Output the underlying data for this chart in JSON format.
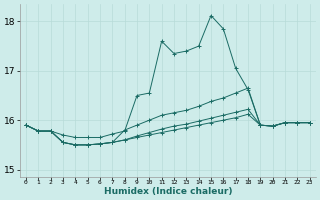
{
  "xlabel": "Humidex (Indice chaleur)",
  "background_color": "#ceecea",
  "grid_color": "#b8dbd8",
  "line_color": "#1a6b64",
  "x_labels": [
    "0",
    "1",
    "2",
    "3",
    "4",
    "5",
    "6",
    "7",
    "8",
    "9",
    "10",
    "11",
    "12",
    "13",
    "14",
    "15",
    "16",
    "17",
    "18",
    "19",
    "20",
    "21",
    "22",
    "23"
  ],
  "xlim": [
    -0.5,
    23.5
  ],
  "ylim": [
    14.85,
    18.35
  ],
  "yticks": [
    15,
    16,
    17,
    18
  ],
  "series": [
    [
      15.9,
      15.78,
      15.78,
      15.7,
      15.65,
      15.65,
      15.65,
      15.72,
      15.78,
      16.5,
      16.55,
      17.6,
      17.35,
      17.4,
      17.5,
      18.12,
      17.85,
      17.05,
      16.62,
      15.9,
      15.88,
      15.95,
      15.95,
      15.95
    ],
    [
      15.9,
      15.78,
      15.78,
      15.55,
      15.5,
      15.5,
      15.52,
      15.55,
      15.8,
      15.9,
      16.0,
      16.1,
      16.15,
      16.2,
      16.28,
      16.38,
      16.45,
      16.55,
      16.65,
      15.9,
      15.88,
      15.95,
      15.95,
      15.95
    ],
    [
      15.9,
      15.78,
      15.78,
      15.55,
      15.5,
      15.5,
      15.52,
      15.55,
      15.6,
      15.68,
      15.75,
      15.82,
      15.88,
      15.92,
      15.98,
      16.04,
      16.1,
      16.16,
      16.22,
      15.9,
      15.88,
      15.95,
      15.95,
      15.95
    ],
    [
      15.9,
      15.78,
      15.78,
      15.55,
      15.5,
      15.5,
      15.52,
      15.55,
      15.6,
      15.65,
      15.7,
      15.75,
      15.8,
      15.85,
      15.9,
      15.95,
      16.0,
      16.05,
      16.12,
      15.9,
      15.88,
      15.95,
      15.95,
      15.95
    ]
  ]
}
